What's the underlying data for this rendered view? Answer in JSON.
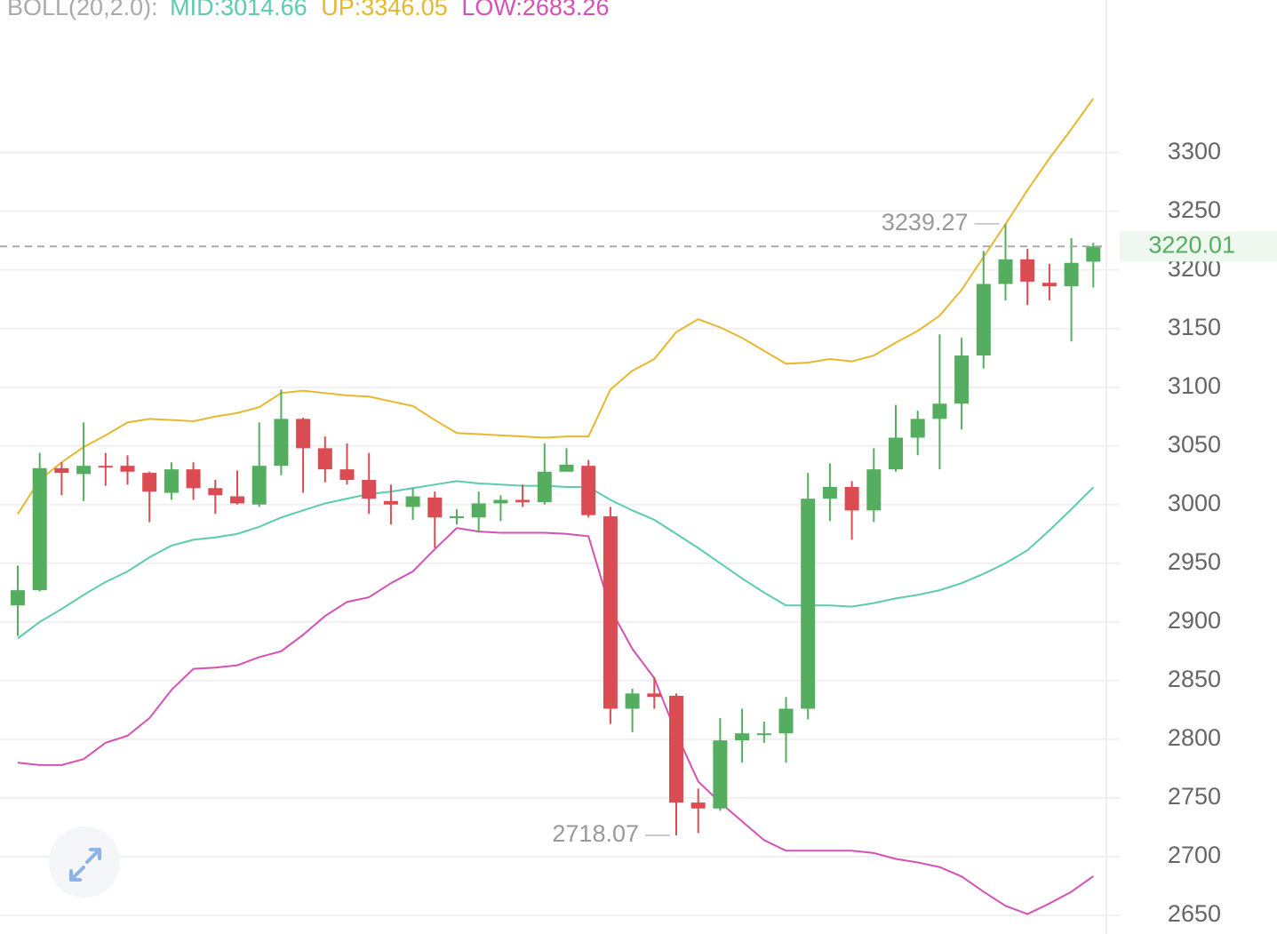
{
  "chart_data": {
    "type": "candlestick",
    "indicator_label": "BOLL(20,2.0):",
    "open": [
      2914,
      2927,
      3031,
      3026,
      3033,
      3033,
      3027,
      3010,
      3030,
      3014,
      3007,
      3000,
      3033,
      3073,
      3048,
      3030,
      3021,
      3003,
      2998,
      3006,
      2989,
      2989,
      3001,
      3004,
      3002,
      3028,
      3033,
      2990,
      2826,
      2839,
      2837,
      2746,
      2741,
      2799,
      2804,
      2805,
      2826,
      3005,
      3015,
      2995,
      3030,
      3057,
      3073,
      3086,
      3127,
      3188,
      3209,
      3189,
      3186,
      3207
    ],
    "high": [
      2948,
      3044,
      3036,
      3070,
      3044,
      3042,
      3028,
      3036,
      3036,
      3021,
      3029,
      3070,
      3098,
      3074,
      3058,
      3052,
      3044,
      3017,
      3014,
      3011,
      2996,
      3011,
      3008,
      3017,
      3052,
      3048,
      3038,
      2998,
      2843,
      2853,
      2839,
      2758,
      2818,
      2826,
      2815,
      2836,
      3027,
      3035,
      3020,
      3048,
      3085,
      3080,
      3145,
      3142,
      3216,
      3239.27,
      3218,
      3205,
      3227,
      3223
    ],
    "low": [
      2888,
      2926,
      3008,
      3003,
      3016,
      3017,
      2985,
      3004,
      3004,
      2992,
      3000,
      2998,
      3025,
      3010,
      3019,
      3017,
      2992,
      2983,
      2987,
      2963,
      2983,
      2976,
      2986,
      2998,
      3000,
      3028,
      2989,
      2813,
      2806,
      2826,
      2718.07,
      2720,
      2739,
      2780,
      2797,
      2780,
      2817,
      2986,
      2970,
      2985,
      3028,
      3042,
      3030,
      3064,
      3116,
      3174,
      3170,
      3174,
      3139,
      3185
    ],
    "close": [
      2927,
      3031,
      3027,
      3033,
      3032,
      3028,
      3011,
      3030,
      3014,
      3008,
      3001,
      3033,
      3073,
      3048,
      3030,
      3021,
      3005,
      3000,
      3007,
      2989,
      2990,
      3001,
      3004,
      3002,
      3028,
      3034,
      2991,
      2826,
      2839,
      2836,
      2746,
      2741,
      2799,
      2805,
      2805,
      2826,
      3005,
      3015,
      2995,
      3030,
      3057,
      3073,
      3086,
      3127,
      3188,
      3209,
      3190,
      3186,
      3206,
      3220.01
    ],
    "up_color": "#55ad5f",
    "down_color": "#da4b52",
    "series": [
      {
        "name": "MID:3014.66",
        "color": "#5ccbae",
        "values": [
          2886,
          2900,
          2911,
          2923,
          2934,
          2943,
          2955,
          2965,
          2970,
          2972,
          2975,
          2981,
          2989,
          2995,
          3001,
          3005,
          3009,
          3011,
          3014,
          3017,
          3020,
          3018,
          3017,
          3016,
          3016,
          3015,
          3015,
          3004,
          2995,
          2987,
          2975,
          2963,
          2950,
          2937,
          2925,
          2914,
          2914,
          2914,
          2913,
          2916,
          2920,
          2923,
          2927,
          2933,
          2941,
          2950,
          2961,
          2978,
          2996,
          3014.66
        ]
      },
      {
        "name": "UP:3346.05",
        "color": "#e6b830",
        "values": [
          2992,
          3021,
          3036,
          3049,
          3059,
          3070,
          3073,
          3072,
          3071,
          3075,
          3078,
          3083,
          3095,
          3097,
          3095,
          3093,
          3092,
          3088,
          3084,
          3072,
          3061,
          3060,
          3059,
          3058,
          3057,
          3058,
          3058,
          3098,
          3114,
          3124,
          3147,
          3158,
          3151,
          3142,
          3131,
          3120,
          3121,
          3124,
          3122,
          3127,
          3138,
          3148,
          3161,
          3183,
          3211,
          3239,
          3268,
          3295,
          3320,
          3346.05
        ]
      },
      {
        "name": "LOW:2683.26",
        "color": "#d552b4",
        "values": [
          2780,
          2778,
          2778,
          2783,
          2797,
          2803,
          2818,
          2842,
          2860,
          2861,
          2863,
          2870,
          2875,
          2889,
          2905,
          2917,
          2921,
          2933,
          2943,
          2962,
          2980,
          2977,
          2976,
          2976,
          2976,
          2975,
          2973,
          2911,
          2877,
          2852,
          2805,
          2764,
          2746,
          2730,
          2714,
          2705,
          2705,
          2705,
          2705,
          2703,
          2698,
          2695,
          2691,
          2683,
          2670,
          2658,
          2651,
          2660,
          2670,
          2683.26
        ]
      }
    ],
    "annotations": [
      3239.27,
      2718.07
    ],
    "last_price": 3220.01,
    "ylim": [
      2634,
      3430
    ],
    "yticks": [
      2650,
      2700,
      2750,
      2800,
      2850,
      2900,
      2950,
      3000,
      3050,
      3100,
      3150,
      3200,
      3250,
      3300
    ],
    "grid": true
  }
}
